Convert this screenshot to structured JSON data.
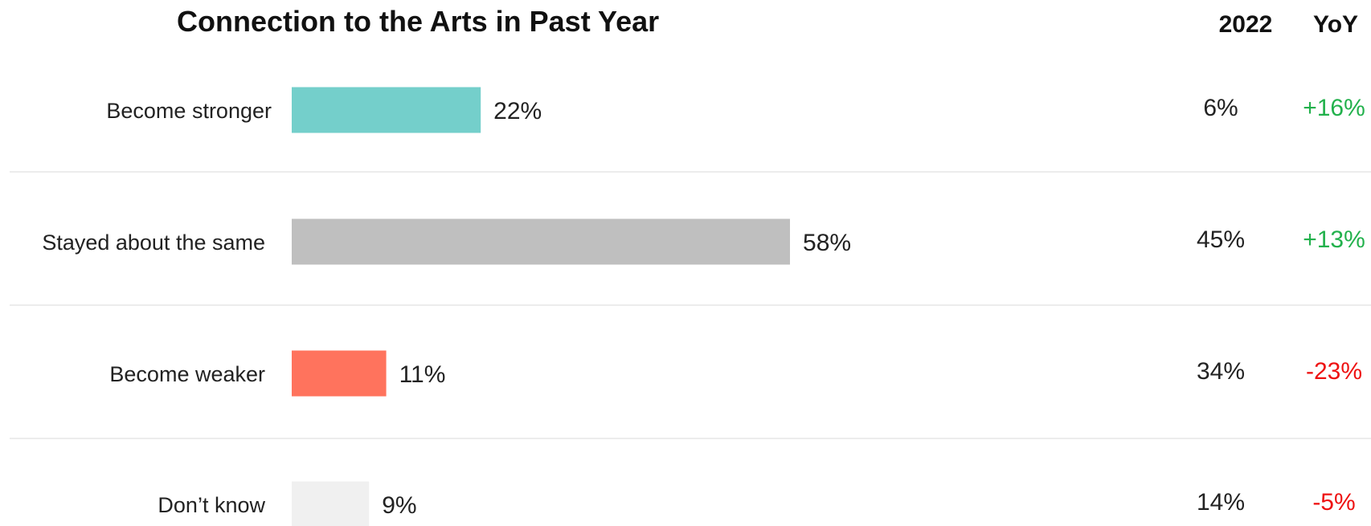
{
  "chart_data": {
    "type": "bar",
    "orientation": "horizontal",
    "title": "Connection to the Arts in Past Year",
    "categories": [
      "Become stronger",
      "Stayed about the same",
      "Become weaker",
      "Don’t know"
    ],
    "values": [
      22,
      58,
      11,
      9
    ],
    "value_labels": [
      "22%",
      "58%",
      "11%",
      "9%"
    ],
    "bar_colors": [
      "#74cfcb",
      "#bfbfbf",
      "#ff735d",
      "#f0f0f0"
    ],
    "xlim": [
      0,
      100
    ],
    "grid": false,
    "legend": "none",
    "comparison_columns": [
      {
        "header": "2022",
        "values": [
          6,
          45,
          34,
          14
        ],
        "labels": [
          "6%",
          "45%",
          "34%",
          "14%"
        ]
      },
      {
        "header": "YoY",
        "values": [
          16,
          13,
          -23,
          -5
        ],
        "labels": [
          "+16%",
          "+13%",
          "-23%",
          "-5%"
        ],
        "positive_color": "#22b14c",
        "negative_color": "#ee1111"
      }
    ]
  }
}
